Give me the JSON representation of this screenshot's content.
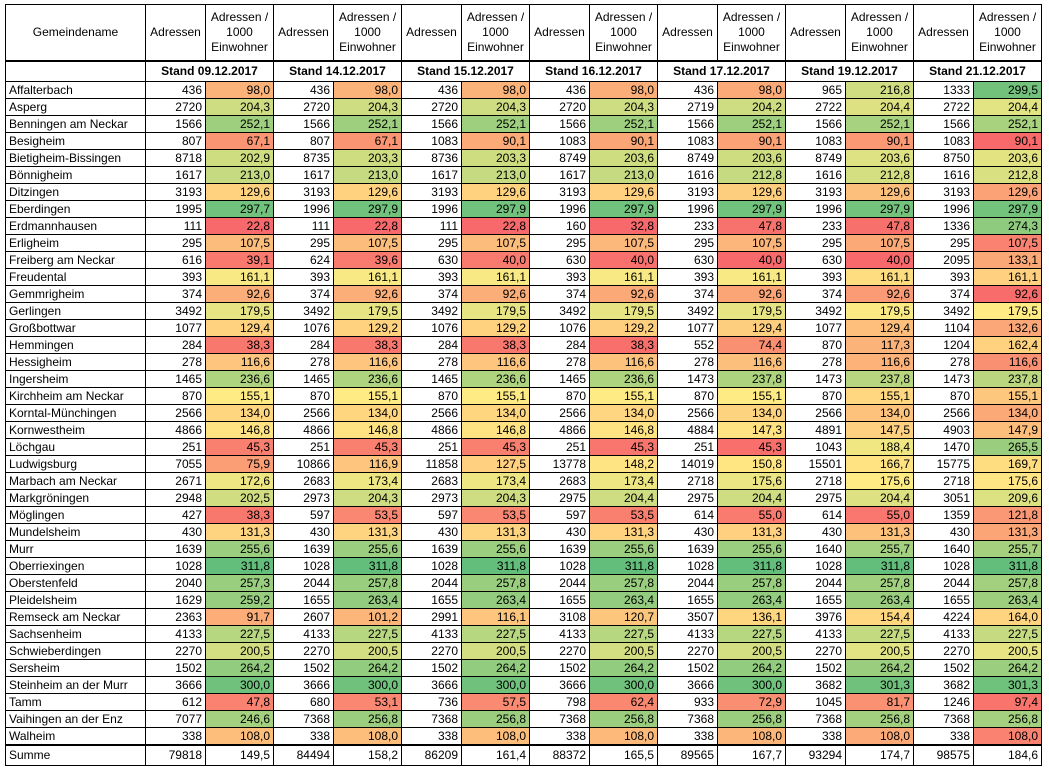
{
  "header": {
    "name_label": "Gemeindename",
    "adressen_label": "Adressen",
    "ratio_label": "Adressen / 1000 Einwohner"
  },
  "stand_dates": [
    "Stand 09.12.2017",
    "Stand 14.12.2017",
    "Stand 15.12.2017",
    "Stand 16.12.2017",
    "Stand 17.12.2017",
    "Stand 19.12.2017",
    "Stand 21.12.2017"
  ],
  "rows": [
    {
      "name": "Affalterbach",
      "values": [
        [
          "436",
          "98,0"
        ],
        [
          "436",
          "98,0"
        ],
        [
          "436",
          "98,0"
        ],
        [
          "436",
          "98,0"
        ],
        [
          "436",
          "98,0"
        ],
        [
          "965",
          "216,8"
        ],
        [
          "1333",
          "299,5"
        ]
      ]
    },
    {
      "name": "Asperg",
      "values": [
        [
          "2720",
          "204,3"
        ],
        [
          "2720",
          "204,3"
        ],
        [
          "2720",
          "204,3"
        ],
        [
          "2720",
          "204,3"
        ],
        [
          "2719",
          "204,2"
        ],
        [
          "2722",
          "204,4"
        ],
        [
          "2722",
          "204,4"
        ]
      ]
    },
    {
      "name": "Benningen am Neckar",
      "values": [
        [
          "1566",
          "252,1"
        ],
        [
          "1566",
          "252,1"
        ],
        [
          "1566",
          "252,1"
        ],
        [
          "1566",
          "252,1"
        ],
        [
          "1566",
          "252,1"
        ],
        [
          "1566",
          "252,1"
        ],
        [
          "1566",
          "252,1"
        ]
      ]
    },
    {
      "name": "Besigheim",
      "values": [
        [
          "807",
          "67,1"
        ],
        [
          "807",
          "67,1"
        ],
        [
          "1083",
          "90,1"
        ],
        [
          "1083",
          "90,1"
        ],
        [
          "1083",
          "90,1"
        ],
        [
          "1083",
          "90,1"
        ],
        [
          "1083",
          "90,1"
        ]
      ]
    },
    {
      "name": "Bietigheim-Bissingen",
      "values": [
        [
          "8718",
          "202,9"
        ],
        [
          "8735",
          "203,3"
        ],
        [
          "8736",
          "203,3"
        ],
        [
          "8749",
          "203,6"
        ],
        [
          "8749",
          "203,6"
        ],
        [
          "8749",
          "203,6"
        ],
        [
          "8750",
          "203,6"
        ]
      ]
    },
    {
      "name": "Bönnigheim",
      "values": [
        [
          "1617",
          "213,0"
        ],
        [
          "1617",
          "213,0"
        ],
        [
          "1617",
          "213,0"
        ],
        [
          "1617",
          "213,0"
        ],
        [
          "1616",
          "212,8"
        ],
        [
          "1616",
          "212,8"
        ],
        [
          "1616",
          "212,8"
        ]
      ]
    },
    {
      "name": "Ditzingen",
      "values": [
        [
          "3193",
          "129,6"
        ],
        [
          "3193",
          "129,6"
        ],
        [
          "3193",
          "129,6"
        ],
        [
          "3193",
          "129,6"
        ],
        [
          "3193",
          "129,6"
        ],
        [
          "3193",
          "129,6"
        ],
        [
          "3193",
          "129,6"
        ]
      ]
    },
    {
      "name": "Eberdingen",
      "values": [
        [
          "1995",
          "297,7"
        ],
        [
          "1996",
          "297,9"
        ],
        [
          "1996",
          "297,9"
        ],
        [
          "1996",
          "297,9"
        ],
        [
          "1996",
          "297,9"
        ],
        [
          "1996",
          "297,9"
        ],
        [
          "1996",
          "297,9"
        ]
      ]
    },
    {
      "name": "Erdmannhausen",
      "values": [
        [
          "111",
          "22,8"
        ],
        [
          "111",
          "22,8"
        ],
        [
          "111",
          "22,8"
        ],
        [
          "160",
          "32,8"
        ],
        [
          "233",
          "47,8"
        ],
        [
          "233",
          "47,8"
        ],
        [
          "1336",
          "274,3"
        ]
      ]
    },
    {
      "name": "Erligheim",
      "values": [
        [
          "295",
          "107,5"
        ],
        [
          "295",
          "107,5"
        ],
        [
          "295",
          "107,5"
        ],
        [
          "295",
          "107,5"
        ],
        [
          "295",
          "107,5"
        ],
        [
          "295",
          "107,5"
        ],
        [
          "295",
          "107,5"
        ]
      ]
    },
    {
      "name": "Freiberg am Neckar",
      "values": [
        [
          "616",
          "39,1"
        ],
        [
          "624",
          "39,6"
        ],
        [
          "630",
          "40,0"
        ],
        [
          "630",
          "40,0"
        ],
        [
          "630",
          "40,0"
        ],
        [
          "630",
          "40,0"
        ],
        [
          "2095",
          "133,1"
        ]
      ]
    },
    {
      "name": "Freudental",
      "values": [
        [
          "393",
          "161,1"
        ],
        [
          "393",
          "161,1"
        ],
        [
          "393",
          "161,1"
        ],
        [
          "393",
          "161,1"
        ],
        [
          "393",
          "161,1"
        ],
        [
          "393",
          "161,1"
        ],
        [
          "393",
          "161,1"
        ]
      ]
    },
    {
      "name": "Gemmrigheim",
      "values": [
        [
          "374",
          "92,6"
        ],
        [
          "374",
          "92,6"
        ],
        [
          "374",
          "92,6"
        ],
        [
          "374",
          "92,6"
        ],
        [
          "374",
          "92,6"
        ],
        [
          "374",
          "92,6"
        ],
        [
          "374",
          "92,6"
        ]
      ]
    },
    {
      "name": "Gerlingen",
      "values": [
        [
          "3492",
          "179,5"
        ],
        [
          "3492",
          "179,5"
        ],
        [
          "3492",
          "179,5"
        ],
        [
          "3492",
          "179,5"
        ],
        [
          "3492",
          "179,5"
        ],
        [
          "3492",
          "179,5"
        ],
        [
          "3492",
          "179,5"
        ]
      ]
    },
    {
      "name": "Großbottwar",
      "values": [
        [
          "1077",
          "129,4"
        ],
        [
          "1076",
          "129,2"
        ],
        [
          "1076",
          "129,2"
        ],
        [
          "1076",
          "129,2"
        ],
        [
          "1077",
          "129,4"
        ],
        [
          "1077",
          "129,4"
        ],
        [
          "1104",
          "132,6"
        ]
      ]
    },
    {
      "name": "Hemmingen",
      "values": [
        [
          "284",
          "38,3"
        ],
        [
          "284",
          "38,3"
        ],
        [
          "284",
          "38,3"
        ],
        [
          "284",
          "38,3"
        ],
        [
          "552",
          "74,4"
        ],
        [
          "870",
          "117,3"
        ],
        [
          "1204",
          "162,4"
        ]
      ]
    },
    {
      "name": "Hessigheim",
      "values": [
        [
          "278",
          "116,6"
        ],
        [
          "278",
          "116,6"
        ],
        [
          "278",
          "116,6"
        ],
        [
          "278",
          "116,6"
        ],
        [
          "278",
          "116,6"
        ],
        [
          "278",
          "116,6"
        ],
        [
          "278",
          "116,6"
        ]
      ]
    },
    {
      "name": "Ingersheim",
      "values": [
        [
          "1465",
          "236,6"
        ],
        [
          "1465",
          "236,6"
        ],
        [
          "1465",
          "236,6"
        ],
        [
          "1465",
          "236,6"
        ],
        [
          "1473",
          "237,8"
        ],
        [
          "1473",
          "237,8"
        ],
        [
          "1473",
          "237,8"
        ]
      ]
    },
    {
      "name": "Kirchheim am Neckar",
      "values": [
        [
          "870",
          "155,1"
        ],
        [
          "870",
          "155,1"
        ],
        [
          "870",
          "155,1"
        ],
        [
          "870",
          "155,1"
        ],
        [
          "870",
          "155,1"
        ],
        [
          "870",
          "155,1"
        ],
        [
          "870",
          "155,1"
        ]
      ]
    },
    {
      "name": "Korntal-Münchingen",
      "values": [
        [
          "2566",
          "134,0"
        ],
        [
          "2566",
          "134,0"
        ],
        [
          "2566",
          "134,0"
        ],
        [
          "2566",
          "134,0"
        ],
        [
          "2566",
          "134,0"
        ],
        [
          "2566",
          "134,0"
        ],
        [
          "2566",
          "134,0"
        ]
      ]
    },
    {
      "name": "Kornwestheim",
      "values": [
        [
          "4866",
          "146,8"
        ],
        [
          "4866",
          "146,8"
        ],
        [
          "4866",
          "146,8"
        ],
        [
          "4866",
          "146,8"
        ],
        [
          "4884",
          "147,3"
        ],
        [
          "4891",
          "147,5"
        ],
        [
          "4903",
          "147,9"
        ]
      ]
    },
    {
      "name": "Löchgau",
      "values": [
        [
          "251",
          "45,3"
        ],
        [
          "251",
          "45,3"
        ],
        [
          "251",
          "45,3"
        ],
        [
          "251",
          "45,3"
        ],
        [
          "251",
          "45,3"
        ],
        [
          "1043",
          "188,4"
        ],
        [
          "1470",
          "265,5"
        ]
      ]
    },
    {
      "name": "Ludwigsburg",
      "values": [
        [
          "7055",
          "75,9"
        ],
        [
          "10866",
          "116,9"
        ],
        [
          "11858",
          "127,5"
        ],
        [
          "13778",
          "148,2"
        ],
        [
          "14019",
          "150,8"
        ],
        [
          "15501",
          "166,7"
        ],
        [
          "15775",
          "169,7"
        ]
      ]
    },
    {
      "name": "Marbach am Neckar",
      "values": [
        [
          "2671",
          "172,6"
        ],
        [
          "2683",
          "173,4"
        ],
        [
          "2683",
          "173,4"
        ],
        [
          "2683",
          "173,4"
        ],
        [
          "2718",
          "175,6"
        ],
        [
          "2718",
          "175,6"
        ],
        [
          "2718",
          "175,6"
        ]
      ]
    },
    {
      "name": "Markgröningen",
      "values": [
        [
          "2948",
          "202,5"
        ],
        [
          "2973",
          "204,3"
        ],
        [
          "2973",
          "204,3"
        ],
        [
          "2975",
          "204,4"
        ],
        [
          "2975",
          "204,4"
        ],
        [
          "2975",
          "204,4"
        ],
        [
          "3051",
          "209,6"
        ]
      ]
    },
    {
      "name": "Möglingen",
      "values": [
        [
          "427",
          "38,3"
        ],
        [
          "597",
          "53,5"
        ],
        [
          "597",
          "53,5"
        ],
        [
          "597",
          "53,5"
        ],
        [
          "614",
          "55,0"
        ],
        [
          "614",
          "55,0"
        ],
        [
          "1359",
          "121,8"
        ]
      ]
    },
    {
      "name": "Mundelsheim",
      "values": [
        [
          "430",
          "131,3"
        ],
        [
          "430",
          "131,3"
        ],
        [
          "430",
          "131,3"
        ],
        [
          "430",
          "131,3"
        ],
        [
          "430",
          "131,3"
        ],
        [
          "430",
          "131,3"
        ],
        [
          "430",
          "131,3"
        ]
      ]
    },
    {
      "name": "Murr",
      "values": [
        [
          "1639",
          "255,6"
        ],
        [
          "1639",
          "255,6"
        ],
        [
          "1639",
          "255,6"
        ],
        [
          "1639",
          "255,6"
        ],
        [
          "1639",
          "255,6"
        ],
        [
          "1640",
          "255,7"
        ],
        [
          "1640",
          "255,7"
        ]
      ]
    },
    {
      "name": "Oberriexingen",
      "values": [
        [
          "1028",
          "311,8"
        ],
        [
          "1028",
          "311,8"
        ],
        [
          "1028",
          "311,8"
        ],
        [
          "1028",
          "311,8"
        ],
        [
          "1028",
          "311,8"
        ],
        [
          "1028",
          "311,8"
        ],
        [
          "1028",
          "311,8"
        ]
      ]
    },
    {
      "name": "Oberstenfeld",
      "values": [
        [
          "2040",
          "257,3"
        ],
        [
          "2044",
          "257,8"
        ],
        [
          "2044",
          "257,8"
        ],
        [
          "2044",
          "257,8"
        ],
        [
          "2044",
          "257,8"
        ],
        [
          "2044",
          "257,8"
        ],
        [
          "2044",
          "257,8"
        ]
      ]
    },
    {
      "name": "Pleidelsheim",
      "values": [
        [
          "1629",
          "259,2"
        ],
        [
          "1655",
          "263,4"
        ],
        [
          "1655",
          "263,4"
        ],
        [
          "1655",
          "263,4"
        ],
        [
          "1655",
          "263,4"
        ],
        [
          "1655",
          "263,4"
        ],
        [
          "1655",
          "263,4"
        ]
      ]
    },
    {
      "name": "Remseck am Neckar",
      "values": [
        [
          "2363",
          "91,7"
        ],
        [
          "2607",
          "101,2"
        ],
        [
          "2991",
          "116,1"
        ],
        [
          "3108",
          "120,7"
        ],
        [
          "3507",
          "136,1"
        ],
        [
          "3976",
          "154,4"
        ],
        [
          "4224",
          "164,0"
        ]
      ]
    },
    {
      "name": "Sachsenheim",
      "values": [
        [
          "4133",
          "227,5"
        ],
        [
          "4133",
          "227,5"
        ],
        [
          "4133",
          "227,5"
        ],
        [
          "4133",
          "227,5"
        ],
        [
          "4133",
          "227,5"
        ],
        [
          "4133",
          "227,5"
        ],
        [
          "4133",
          "227,5"
        ]
      ]
    },
    {
      "name": "Schwieberdingen",
      "values": [
        [
          "2270",
          "200,5"
        ],
        [
          "2270",
          "200,5"
        ],
        [
          "2270",
          "200,5"
        ],
        [
          "2270",
          "200,5"
        ],
        [
          "2270",
          "200,5"
        ],
        [
          "2270",
          "200,5"
        ],
        [
          "2270",
          "200,5"
        ]
      ]
    },
    {
      "name": "Sersheim",
      "values": [
        [
          "1502",
          "264,2"
        ],
        [
          "1502",
          "264,2"
        ],
        [
          "1502",
          "264,2"
        ],
        [
          "1502",
          "264,2"
        ],
        [
          "1502",
          "264,2"
        ],
        [
          "1502",
          "264,2"
        ],
        [
          "1502",
          "264,2"
        ]
      ]
    },
    {
      "name": "Steinheim an der Murr",
      "values": [
        [
          "3666",
          "300,0"
        ],
        [
          "3666",
          "300,0"
        ],
        [
          "3666",
          "300,0"
        ],
        [
          "3666",
          "300,0"
        ],
        [
          "3666",
          "300,0"
        ],
        [
          "3682",
          "301,3"
        ],
        [
          "3682",
          "301,3"
        ]
      ]
    },
    {
      "name": "Tamm",
      "values": [
        [
          "612",
          "47,8"
        ],
        [
          "680",
          "53,1"
        ],
        [
          "736",
          "57,5"
        ],
        [
          "798",
          "62,4"
        ],
        [
          "933",
          "72,9"
        ],
        [
          "1045",
          "81,7"
        ],
        [
          "1246",
          "97,4"
        ]
      ]
    },
    {
      "name": "Vaihingen an der Enz",
      "values": [
        [
          "7077",
          "246,6"
        ],
        [
          "7368",
          "256,8"
        ],
        [
          "7368",
          "256,8"
        ],
        [
          "7368",
          "256,8"
        ],
        [
          "7368",
          "256,8"
        ],
        [
          "7368",
          "256,8"
        ],
        [
          "7368",
          "256,8"
        ]
      ]
    },
    {
      "name": "Walheim",
      "values": [
        [
          "338",
          "108,0"
        ],
        [
          "338",
          "108,0"
        ],
        [
          "338",
          "108,0"
        ],
        [
          "338",
          "108,0"
        ],
        [
          "338",
          "108,0"
        ],
        [
          "338",
          "108,0"
        ],
        [
          "338",
          "108,0"
        ]
      ]
    }
  ],
  "summe": {
    "name": "Summe",
    "values": [
      [
        "79818",
        "149,5"
      ],
      [
        "84494",
        "158,2"
      ],
      [
        "86209",
        "161,4"
      ],
      [
        "88372",
        "165,5"
      ],
      [
        "89565",
        "167,7"
      ],
      [
        "93294",
        "174,7"
      ],
      [
        "98575",
        "184,6"
      ]
    ]
  },
  "colors": {
    "scale_low": "#f8696b",
    "scale_mid": "#ffeb84",
    "scale_high": "#63be7b",
    "border": "#000000"
  }
}
